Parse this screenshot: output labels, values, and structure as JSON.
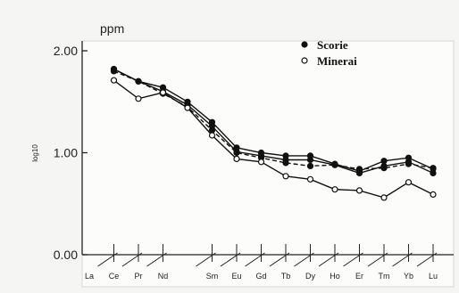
{
  "chart_data": {
    "type": "line",
    "unit": "ppm",
    "ylabel": "log10",
    "ylim": [
      0.0,
      2.0
    ],
    "yticks": [
      "0.00",
      "1.00",
      "2.00"
    ],
    "categories": [
      "La",
      "Ce",
      "Pr",
      "Nd",
      "Sm",
      "Eu",
      "Gd",
      "Tb",
      "Dy",
      "Ho",
      "Er",
      "Tm",
      "Yb",
      "Lu"
    ],
    "x_positions": [
      1,
      2,
      3,
      4,
      6,
      7,
      8,
      9,
      10,
      11,
      12,
      13,
      14,
      15
    ],
    "legend_position": "top-right",
    "series": [
      {
        "name": "Scorie",
        "marker": "filled-circle",
        "lines": [
          {
            "style": "solid",
            "x": [
              2,
              3,
              4,
              5,
              6,
              7,
              8,
              9,
              10,
              11,
              12,
              13,
              14,
              15
            ],
            "values": [
              1.82,
              1.7,
              1.64,
              1.5,
              1.3,
              1.05,
              1.0,
              0.97,
              0.97,
              0.89,
              0.82,
              0.92,
              0.95,
              0.84
            ]
          },
          {
            "style": "solid",
            "x": [
              2,
              3,
              4,
              5,
              6,
              7,
              8,
              9,
              10,
              11,
              12,
              13,
              14,
              15
            ],
            "values": [
              1.82,
              1.7,
              1.6,
              1.47,
              1.26,
              1.01,
              0.97,
              0.93,
              0.93,
              0.88,
              0.8,
              0.87,
              0.91,
              0.8
            ]
          },
          {
            "style": "dashed",
            "x": [
              2,
              3,
              4,
              5,
              6,
              7,
              8,
              9,
              10,
              11,
              12,
              13,
              14,
              15
            ],
            "values": [
              1.8,
              1.7,
              1.58,
              1.45,
              1.22,
              1.0,
              0.95,
              0.9,
              0.87,
              0.88,
              0.84,
              0.85,
              0.89,
              0.85
            ]
          }
        ]
      },
      {
        "name": "Minerai",
        "marker": "open-circle",
        "lines": [
          {
            "style": "solid",
            "x": [
              2,
              3,
              4,
              5,
              6,
              7,
              8,
              9,
              10,
              11,
              12,
              13,
              14,
              15
            ],
            "values": [
              1.71,
              1.53,
              1.59,
              1.44,
              1.17,
              0.94,
              0.91,
              0.77,
              0.74,
              0.64,
              0.63,
              0.56,
              0.71,
              0.59
            ]
          }
        ]
      }
    ]
  }
}
